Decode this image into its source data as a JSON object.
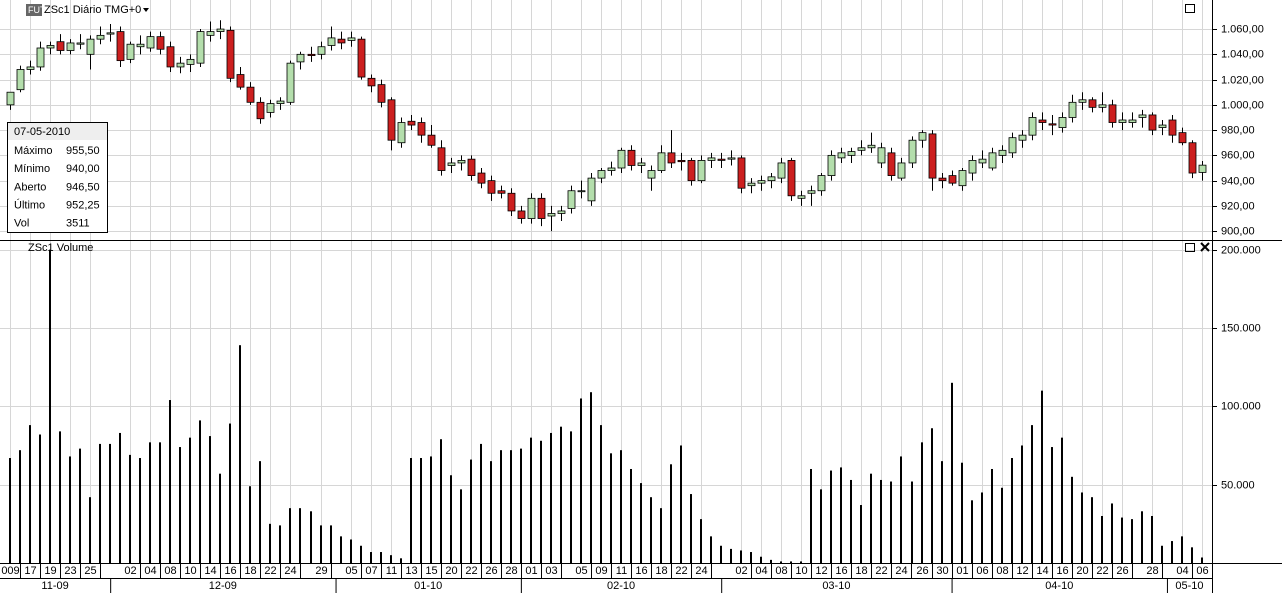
{
  "chart_data": [
    {
      "type": "candlestick",
      "badge": "FUT",
      "title": "ZSc1 Diário TMG+0",
      "up_color": "#b4deac",
      "down_color": "#cc1f1f",
      "grid": true,
      "ylim": [
        893,
        1083
      ],
      "yticks": [
        {
          "value": 900,
          "label": "900,00"
        },
        {
          "value": 920,
          "label": "920,00"
        },
        {
          "value": 940,
          "label": "940,00"
        },
        {
          "value": 960,
          "label": "960,00"
        },
        {
          "value": 980,
          "label": "980,00"
        },
        {
          "value": 1000,
          "label": "1.000,00"
        },
        {
          "value": 1020,
          "label": "1.020,00"
        },
        {
          "value": 1040,
          "label": "1.040,00"
        },
        {
          "value": 1060,
          "label": "1.060,00"
        }
      ],
      "info": {
        "date": "07-05-2010",
        "rows": [
          [
            "Máximo",
            "955,50"
          ],
          [
            "Mínimo",
            "940,00"
          ],
          [
            "Aberto",
            "946,50"
          ],
          [
            "Último",
            "952,25"
          ],
          [
            "Vol",
            "3511"
          ]
        ]
      },
      "open": [
        1000,
        1012,
        1028,
        1030,
        1045,
        1050,
        1043,
        1048,
        1040,
        1052,
        1056,
        1058,
        1036,
        1046,
        1045,
        1054,
        1046,
        1030,
        1032,
        1033,
        1055,
        1058,
        1059,
        1024,
        1014,
        1002,
        994,
        1001,
        1002,
        1034,
        1040,
        1040,
        1047,
        1052,
        1051,
        1052,
        1021,
        1016,
        1004,
        970,
        987,
        986,
        976,
        966,
        952,
        954,
        957,
        946,
        940,
        932,
        930,
        916,
        910,
        926,
        912,
        914,
        918,
        932,
        924,
        942,
        948,
        950,
        964,
        952,
        942,
        948,
        962,
        956,
        956,
        940,
        956,
        957,
        957,
        958,
        936,
        938,
        940,
        942,
        956,
        926,
        930,
        932,
        944,
        958,
        960,
        964,
        966,
        954,
        962,
        942,
        954,
        972,
        977,
        942,
        944,
        936,
        946,
        954,
        950,
        960,
        962,
        972,
        976,
        988,
        985,
        982,
        990,
        1002,
        1004,
        998,
        1000,
        986,
        986,
        990,
        992,
        982,
        988,
        978,
        970,
        946.5
      ],
      "high": [
        1010,
        1031,
        1035,
        1050,
        1050,
        1056,
        1052,
        1056,
        1055,
        1062,
        1064,
        1062,
        1050,
        1055,
        1058,
        1058,
        1050,
        1038,
        1040,
        1060,
        1066,
        1067,
        1062,
        1030,
        1018,
        1006,
        1004,
        1006,
        1035,
        1042,
        1046,
        1050,
        1062,
        1058,
        1058,
        1054,
        1024,
        1020,
        1006,
        990,
        992,
        990,
        984,
        972,
        958,
        960,
        960,
        950,
        944,
        936,
        934,
        920,
        930,
        930,
        920,
        920,
        936,
        940,
        946,
        950,
        955,
        966,
        968,
        958,
        952,
        968,
        980,
        962,
        958,
        960,
        962,
        962,
        964,
        960,
        942,
        944,
        946,
        958,
        958,
        932,
        936,
        946,
        964,
        966,
        966,
        972,
        978,
        970,
        966,
        958,
        975,
        980,
        980,
        946,
        948,
        950,
        960,
        964,
        966,
        968,
        978,
        980,
        994,
        994,
        992,
        994,
        1008,
        1010,
        1006,
        1010,
        1004,
        994,
        994,
        996,
        994,
        988,
        992,
        982,
        972,
        955.5
      ],
      "low": [
        996,
        1010,
        1024,
        1027,
        1040,
        1040,
        1040,
        1044,
        1028,
        1048,
        1050,
        1030,
        1033,
        1040,
        1042,
        1040,
        1026,
        1025,
        1026,
        1030,
        1050,
        1052,
        1018,
        1012,
        1000,
        985,
        990,
        996,
        1000,
        1028,
        1034,
        1036,
        1043,
        1044,
        1046,
        1020,
        1010,
        998,
        964,
        966,
        980,
        970,
        966,
        944,
        946,
        948,
        940,
        934,
        924,
        926,
        912,
        906,
        906,
        904,
        900,
        908,
        914,
        926,
        920,
        938,
        944,
        946,
        948,
        946,
        932,
        946,
        950,
        948,
        936,
        938,
        950,
        950,
        952,
        930,
        930,
        932,
        934,
        938,
        924,
        920,
        920,
        928,
        940,
        954,
        954,
        960,
        962,
        950,
        940,
        940,
        950,
        966,
        932,
        934,
        936,
        932,
        940,
        950,
        948,
        954,
        958,
        966,
        972,
        980,
        976,
        978,
        986,
        996,
        994,
        994,
        982,
        980,
        982,
        982,
        976,
        976,
        970,
        968,
        942,
        940
      ],
      "close": [
        1010,
        1028,
        1030,
        1045,
        1047,
        1043,
        1049,
        1049,
        1052,
        1055,
        1057,
        1035,
        1048,
        1048,
        1054,
        1044,
        1030,
        1033,
        1036,
        1058,
        1058,
        1060,
        1021,
        1014,
        1002,
        989,
        1001,
        1003,
        1033,
        1040,
        1039,
        1046,
        1053,
        1049,
        1053,
        1022,
        1015,
        1002,
        972,
        986,
        984,
        976,
        968,
        948,
        954,
        956,
        944,
        938,
        930,
        930,
        916,
        910,
        926,
        910,
        914,
        916,
        932,
        932,
        942,
        948,
        950,
        964,
        952,
        954,
        948,
        962,
        954,
        955,
        940,
        956,
        958,
        956,
        958,
        934,
        938,
        940,
        943,
        954,
        928,
        928,
        932,
        944,
        960,
        962,
        963,
        966,
        968,
        966,
        944,
        954,
        972,
        978,
        942,
        940,
        938,
        948,
        956,
        957,
        962,
        964,
        974,
        976,
        990,
        986,
        984,
        990,
        1002,
        1004,
        998,
        1000,
        986,
        988,
        988,
        992,
        980,
        984,
        976,
        970,
        946,
        952.25
      ]
    },
    {
      "type": "bar",
      "title": "ZSc1 Volume",
      "color": "#000000",
      "grid": true,
      "ylim": [
        0,
        205500
      ],
      "yticks": [
        {
          "value": 50000,
          "label": "50.000"
        },
        {
          "value": 100000,
          "label": "100.000"
        },
        {
          "value": 150000,
          "label": "150.000"
        },
        {
          "value": 200000,
          "label": "200.000"
        }
      ],
      "groups": [
        "11-09",
        "12-09",
        "01-10",
        "02-10",
        "03-10",
        "04-10",
        "05-10"
      ],
      "categories": [
        "009",
        null,
        "17",
        null,
        "19",
        null,
        "23",
        null,
        "25",
        null,
        null,
        null,
        "02",
        null,
        "04",
        null,
        "08",
        null,
        "10",
        null,
        "14",
        null,
        "16",
        null,
        "18",
        null,
        "22",
        null,
        "24",
        null,
        null,
        "29",
        null,
        null,
        "05",
        null,
        "07",
        null,
        "11",
        null,
        "13",
        null,
        "15",
        null,
        "20",
        null,
        "22",
        null,
        "26",
        null,
        "28",
        null,
        "01",
        null,
        "03",
        null,
        null,
        "05",
        null,
        "09",
        null,
        "11",
        null,
        "16",
        null,
        "18",
        null,
        "22",
        null,
        "24",
        null,
        null,
        null,
        "02",
        null,
        "04",
        null,
        "08",
        null,
        "10",
        null,
        "12",
        null,
        "16",
        null,
        "18",
        null,
        "22",
        null,
        "24",
        null,
        "26",
        null,
        "30",
        null,
        "01",
        null,
        "06",
        null,
        "08",
        null,
        "12",
        null,
        "14",
        null,
        "16",
        null,
        "20",
        null,
        "22",
        null,
        "26",
        null,
        null,
        "28",
        null,
        null,
        "04",
        null,
        "06"
      ],
      "values": [
        67000,
        72000,
        88000,
        82000,
        200000,
        84000,
        68000,
        73000,
        42000,
        76000,
        76000,
        83000,
        69000,
        67000,
        77000,
        77000,
        104000,
        74000,
        80000,
        91000,
        81000,
        57000,
        89000,
        139000,
        49000,
        65000,
        25000,
        24000,
        35000,
        35000,
        33000,
        24000,
        24000,
        17000,
        15000,
        11000,
        7000,
        7000,
        5000,
        3000,
        67000,
        67000,
        68000,
        79000,
        56000,
        47000,
        66000,
        76000,
        65000,
        72000,
        72000,
        73000,
        80000,
        78000,
        83000,
        87000,
        84000,
        105000,
        109000,
        88000,
        70000,
        72000,
        60000,
        51000,
        42000,
        35000,
        63000,
        75000,
        44000,
        28000,
        17000,
        11000,
        9000,
        8000,
        7000,
        4000,
        2000,
        1000,
        1000,
        1000,
        60000,
        47000,
        59000,
        61000,
        53000,
        37000,
        57000,
        53000,
        52000,
        68000,
        52000,
        77000,
        86000,
        65000,
        115000,
        64000,
        40000,
        45000,
        60000,
        48000,
        67000,
        75000,
        88000,
        110000,
        74000,
        80000,
        55000,
        45000,
        42000,
        30000,
        38000,
        29000,
        28000,
        33000,
        30000,
        11000,
        14000,
        17000,
        10000,
        3511
      ]
    }
  ]
}
